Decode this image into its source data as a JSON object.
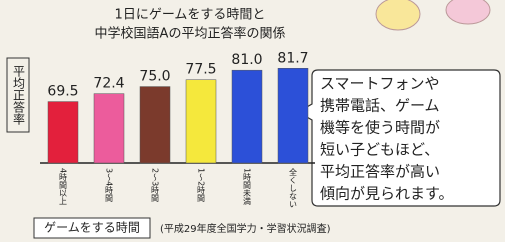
{
  "chart_data": {
    "type": "bar",
    "title": [
      "1日にゲームをする時間と",
      "中学校国語Aの平均正答率の関係"
    ],
    "y_label": "平均正答率",
    "x_label": "ゲームをする時間",
    "source": "(平成29年度全国学力・学習状況調査)",
    "categories": [
      "4時間以上",
      "3〜4時間",
      "2〜3時間",
      "1〜2時間",
      "1時間未満",
      "全くしない"
    ],
    "values": [
      69.5,
      72.4,
      75.0,
      77.5,
      81.0,
      81.7
    ],
    "value_labels": [
      "69.5",
      "72.4",
      "75.0",
      "77.5",
      "81.0",
      "81.7"
    ],
    "colors": [
      "#e3203c",
      "#ec5c9c",
      "#7b3a2c",
      "#f5e83c",
      "#2c50d8",
      "#2c50d8"
    ],
    "ylim": [
      47,
      84
    ],
    "note": [
      "スマートフォンや",
      "携帯電話、ゲーム",
      "機等を使う時間が",
      "短い子どもほど、",
      "平均正答率が高い",
      "傾向が見られます。"
    ]
  }
}
